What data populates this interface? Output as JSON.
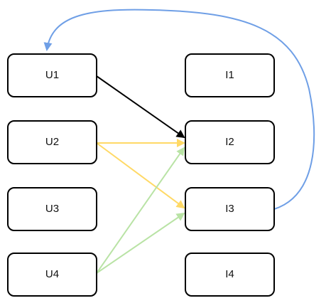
{
  "diagram": {
    "nodes": {
      "u1": "U1",
      "u2": "U2",
      "u3": "U3",
      "u4": "U4",
      "i1": "I1",
      "i2": "I2",
      "i3": "I3",
      "i4": "I4"
    },
    "colors": {
      "node_border": "#000000",
      "edge_black": "#000000",
      "edge_yellow": "#ffd966",
      "edge_green": "#b9e3a5",
      "edge_blue": "#6f9fe6"
    },
    "edges": [
      {
        "from": "U1",
        "to": "I2",
        "color": "black"
      },
      {
        "from": "U2",
        "to": "I2",
        "color": "yellow"
      },
      {
        "from": "U2",
        "to": "I3",
        "color": "yellow"
      },
      {
        "from": "U4",
        "to": "I2",
        "color": "green"
      },
      {
        "from": "U4",
        "to": "I3",
        "color": "green"
      },
      {
        "from": "I3",
        "to": "U1",
        "color": "blue"
      }
    ]
  }
}
